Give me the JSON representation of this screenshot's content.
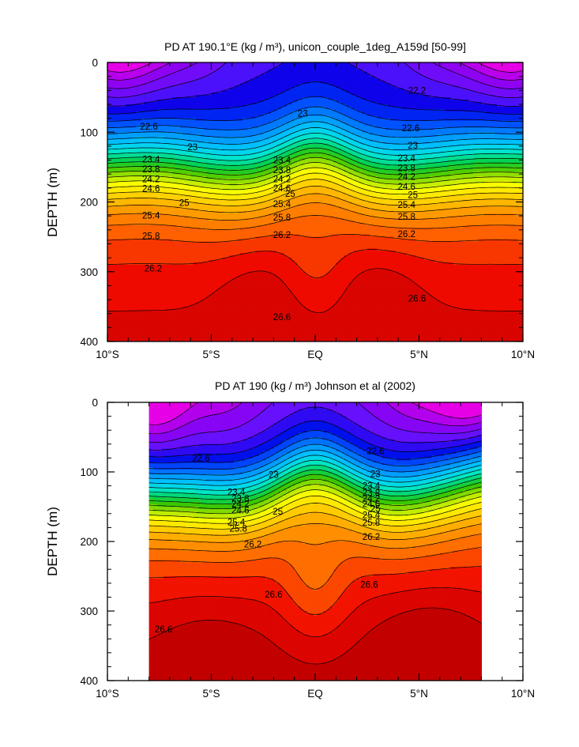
{
  "chart_data": [
    {
      "type": "contour",
      "title": "PD AT 190.1°E (kg / m³), unicon_couple_1deg_A159d [50-99]",
      "xlabel": "",
      "ylabel": "DEPTH (m)",
      "xlim": [
        -10,
        10
      ],
      "ylim": [
        400,
        0
      ],
      "x_ticks": [
        {
          "value": -10,
          "label": "10°S"
        },
        {
          "value": -5,
          "label": "5°S"
        },
        {
          "value": 0,
          "label": "EQ"
        },
        {
          "value": 5,
          "label": "5°N"
        },
        {
          "value": 10,
          "label": "10°N"
        }
      ],
      "y_ticks": [
        {
          "value": 0,
          "label": "0"
        },
        {
          "value": 100,
          "label": "100"
        },
        {
          "value": 200,
          "label": "200"
        },
        {
          "value": 300,
          "label": "300"
        },
        {
          "value": 400,
          "label": "400"
        }
      ],
      "data_x_extent": [
        -10,
        10
      ],
      "contour_levels": [
        21.2,
        21.4,
        21.6,
        21.8,
        22.0,
        22.2,
        22.4,
        22.6,
        22.8,
        23.0,
        23.2,
        23.4,
        23.6,
        23.8,
        24.0,
        24.2,
        24.4,
        24.6,
        24.8,
        25.0,
        25.2,
        25.4,
        25.6,
        25.8,
        26.0,
        26.2,
        26.4,
        26.6,
        26.8
      ],
      "contour_labels": [
        {
          "text": "22.2",
          "x": 4.9,
          "y": 40
        },
        {
          "text": "23",
          "x": -0.6,
          "y": 73
        },
        {
          "text": "22.6",
          "x": -8.0,
          "y": 92
        },
        {
          "text": "22.6",
          "x": 4.6,
          "y": 94
        },
        {
          "text": "23",
          "x": -5.9,
          "y": 121
        },
        {
          "text": "23",
          "x": 4.7,
          "y": 119
        },
        {
          "text": "23.4",
          "x": -7.9,
          "y": 139
        },
        {
          "text": "23.4",
          "x": -1.6,
          "y": 140
        },
        {
          "text": "23.4",
          "x": 4.4,
          "y": 137
        },
        {
          "text": "23.8",
          "x": -7.9,
          "y": 153
        },
        {
          "text": "23.8",
          "x": -1.6,
          "y": 154
        },
        {
          "text": "23.8",
          "x": 4.4,
          "y": 151
        },
        {
          "text": "24.2",
          "x": -7.9,
          "y": 167
        },
        {
          "text": "24.2",
          "x": -1.6,
          "y": 167
        },
        {
          "text": "24.2",
          "x": 4.4,
          "y": 164
        },
        {
          "text": "24.6",
          "x": -7.9,
          "y": 181
        },
        {
          "text": "24.6",
          "x": -1.6,
          "y": 180
        },
        {
          "text": "24.6",
          "x": 4.4,
          "y": 178
        },
        {
          "text": "25",
          "x": -1.2,
          "y": 188
        },
        {
          "text": "25",
          "x": -6.3,
          "y": 201
        },
        {
          "text": "25",
          "x": 4.7,
          "y": 190
        },
        {
          "text": "25.4",
          "x": -1.6,
          "y": 203
        },
        {
          "text": "25.4",
          "x": -7.9,
          "y": 219
        },
        {
          "text": "25.4",
          "x": 4.4,
          "y": 204
        },
        {
          "text": "25.8",
          "x": -1.6,
          "y": 222
        },
        {
          "text": "25.8",
          "x": -7.9,
          "y": 249
        },
        {
          "text": "25.8",
          "x": 4.4,
          "y": 221
        },
        {
          "text": "26.2",
          "x": -1.6,
          "y": 247
        },
        {
          "text": "26.2",
          "x": 4.4,
          "y": 246
        },
        {
          "text": "26.2",
          "x": -7.8,
          "y": 295
        },
        {
          "text": "26.6",
          "x": -1.6,
          "y": 365
        },
        {
          "text": "26.6",
          "x": 4.9,
          "y": 338
        }
      ]
    },
    {
      "type": "contour",
      "title": "PD AT 190 (kg / m³) Johnson et al (2002)",
      "xlabel": "",
      "ylabel": "DEPTH (m)",
      "xlim": [
        -10,
        10
      ],
      "ylim": [
        400,
        0
      ],
      "x_ticks": [
        {
          "value": -10,
          "label": "10°S"
        },
        {
          "value": -5,
          "label": "5°S"
        },
        {
          "value": 0,
          "label": "EQ"
        },
        {
          "value": 5,
          "label": "5°N"
        },
        {
          "value": 10,
          "label": "10°N"
        }
      ],
      "y_ticks": [
        {
          "value": 0,
          "label": "0"
        },
        {
          "value": 100,
          "label": "100"
        },
        {
          "value": 200,
          "label": "200"
        },
        {
          "value": 300,
          "label": "300"
        },
        {
          "value": 400,
          "label": "400"
        }
      ],
      "data_x_extent": [
        -8,
        8
      ],
      "contour_levels": [
        21.8,
        22.0,
        22.2,
        22.4,
        22.6,
        22.8,
        23.0,
        23.2,
        23.4,
        23.6,
        23.8,
        24.0,
        24.2,
        24.4,
        24.6,
        24.8,
        25.0,
        25.2,
        25.4,
        25.6,
        25.8,
        26.0,
        26.2,
        26.4,
        26.6,
        26.8
      ],
      "contour_labels": [
        {
          "text": "22.6",
          "x": -5.5,
          "y": 80
        },
        {
          "text": "22.6",
          "x": 2.9,
          "y": 70
        },
        {
          "text": "23",
          "x": -2.0,
          "y": 104
        },
        {
          "text": "23",
          "x": 2.9,
          "y": 103
        },
        {
          "text": "23.4",
          "x": -3.8,
          "y": 129
        },
        {
          "text": "23.4",
          "x": 2.7,
          "y": 120
        },
        {
          "text": "23.8",
          "x": -3.6,
          "y": 138
        },
        {
          "text": "23.8",
          "x": 2.7,
          "y": 130
        },
        {
          "text": "24.2",
          "x": -3.6,
          "y": 146
        },
        {
          "text": "24.2",
          "x": 2.7,
          "y": 138
        },
        {
          "text": "24.6",
          "x": -3.6,
          "y": 155
        },
        {
          "text": "24.6",
          "x": 2.7,
          "y": 146
        },
        {
          "text": "25",
          "x": -1.8,
          "y": 157
        },
        {
          "text": "25",
          "x": 2.9,
          "y": 153
        },
        {
          "text": "25.4",
          "x": -3.8,
          "y": 172
        },
        {
          "text": "25.4",
          "x": 2.7,
          "y": 162
        },
        {
          "text": "25.8",
          "x": -3.7,
          "y": 181
        },
        {
          "text": "25.8",
          "x": 2.7,
          "y": 173
        },
        {
          "text": "26.2",
          "x": -3.0,
          "y": 204
        },
        {
          "text": "26.2",
          "x": 2.7,
          "y": 193
        },
        {
          "text": "26.6",
          "x": -2.0,
          "y": 276
        },
        {
          "text": "26.6",
          "x": 2.6,
          "y": 262
        },
        {
          "text": "26.6",
          "x": -7.3,
          "y": 326
        }
      ]
    }
  ]
}
